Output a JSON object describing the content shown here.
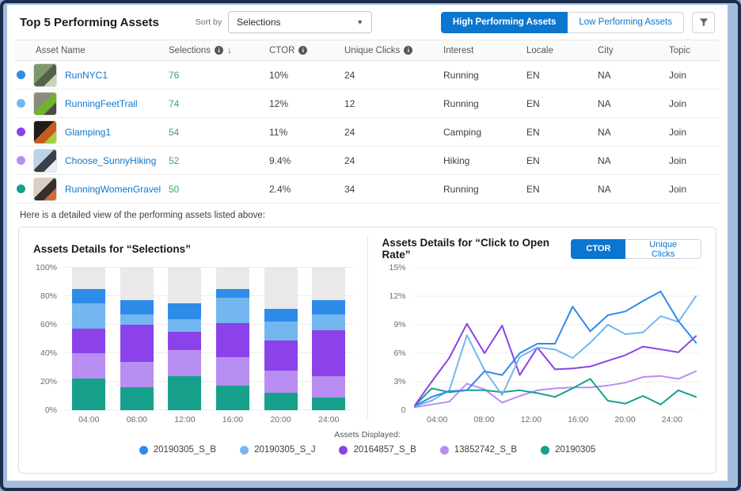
{
  "frame": {
    "border_color": "#1e2c4e",
    "mat_color": "#a4bddd"
  },
  "topbar": {
    "title": "Top 5 Performing Assets",
    "sort_by_label": "Sort by",
    "sort_dropdown_value": "Selections",
    "high_button": "High Performing Assets",
    "low_button": "Low Performing Assets"
  },
  "table": {
    "columns": [
      {
        "label": "Asset Name"
      },
      {
        "label": "Selections",
        "info": true,
        "sorted": true
      },
      {
        "label": "CTOR",
        "info": true
      },
      {
        "label": "Unique Clicks",
        "info": true
      },
      {
        "label": "Interest"
      },
      {
        "label": "Locale"
      },
      {
        "label": "City"
      },
      {
        "label": "Topic"
      }
    ],
    "rows": [
      {
        "dot_color": "#2e8be8",
        "thumb_colors": [
          "#7d9a6b",
          "#55604d",
          "#c8d4b0"
        ],
        "name": "RunNYC1",
        "selections": "76",
        "ctor": "10%",
        "unique_clicks": "24",
        "interest": "Running",
        "locale": "EN",
        "city": "NA",
        "topic": "Join"
      },
      {
        "dot_color": "#74b6f0",
        "thumb_colors": [
          "#8d8a7e",
          "#6db32b",
          "#4a4a44"
        ],
        "name": "RunningFeetTrail",
        "selections": "74",
        "ctor": "12%",
        "unique_clicks": "12",
        "interest": "Running",
        "locale": "EN",
        "city": "NA",
        "topic": "Join"
      },
      {
        "dot_color": "#8b42e8",
        "thumb_colors": [
          "#201a14",
          "#c65a1f",
          "#a6ce39"
        ],
        "name": "Glamping1",
        "selections": "54",
        "ctor": "11%",
        "unique_clicks": "24",
        "interest": "Camping",
        "locale": "EN",
        "city": "NA",
        "topic": "Join"
      },
      {
        "dot_color": "#b88ef2",
        "thumb_colors": [
          "#b9d2e8",
          "#39404a",
          "#e8eef4"
        ],
        "name": "Choose_SunnyHiking",
        "selections": "52",
        "ctor": "9.4%",
        "unique_clicks": "24",
        "interest": "Hiking",
        "locale": "EN",
        "city": "NA",
        "topic": "Join"
      },
      {
        "dot_color": "#17a08c",
        "thumb_colors": [
          "#d9cfc4",
          "#35302d",
          "#cc6f3a"
        ],
        "name": "RunningWomenGravel",
        "selections": "50",
        "ctor": "2.4%",
        "unique_clicks": "34",
        "interest": "Running",
        "locale": "EN",
        "city": "NA",
        "topic": "Join"
      }
    ]
  },
  "note_text": "Here is a detailed view of the performing assets listed above:",
  "charts": {
    "left_title": "Assets Details for “Selections”",
    "right_title": "Assets Details for “Click to Open Rate”",
    "ctor_button": "CTOR",
    "unique_clicks_button": "Unique Clicks",
    "legend_label": "Assets Displayed:"
  },
  "chart_data": [
    {
      "type": "bar",
      "stacked": true,
      "normalized": "percent",
      "title": "Assets Details for “Selections”",
      "categories": [
        "04:00",
        "08:00",
        "12:00",
        "16:00",
        "20:00",
        "24:00"
      ],
      "series": [
        {
          "name": "20190305",
          "color": "#17a08c",
          "values": [
            22,
            16,
            24,
            17,
            12,
            9
          ]
        },
        {
          "name": "13852742_S_B",
          "color": "#b88ef2",
          "values": [
            18,
            18,
            18,
            20,
            16,
            15
          ]
        },
        {
          "name": "20164857_S_B",
          "color": "#8b42e8",
          "values": [
            17,
            26,
            13,
            24,
            21,
            32
          ]
        },
        {
          "name": "20190305_S_J",
          "color": "#74b6f0",
          "values": [
            18,
            7,
            9,
            18,
            13,
            11
          ]
        },
        {
          "name": "20190305_S_B",
          "color": "#2e8be8",
          "values": [
            10,
            10,
            11,
            6,
            9,
            10
          ]
        }
      ],
      "filler_color": "#e9e9e9",
      "ylim": [
        0,
        100
      ],
      "yticks": [
        {
          "v": 0,
          "label": "0%"
        },
        {
          "v": 20,
          "label": "20%"
        },
        {
          "v": 40,
          "label": "40%"
        },
        {
          "v": 60,
          "label": "60%"
        },
        {
          "v": 80,
          "label": "80%"
        },
        {
          "v": 100,
          "label": "100%"
        }
      ],
      "grid": true,
      "legend_position": "bottom-shared"
    },
    {
      "type": "line",
      "title": "Assets Details for “Click to Open Rate”",
      "x": [
        2,
        3.5,
        5,
        6.5,
        8,
        9.5,
        11,
        12.5,
        14,
        15.5,
        17,
        18.5,
        20,
        21.5,
        23,
        24.5,
        26
      ],
      "xdomain": [
        2,
        26.5
      ],
      "ylim": [
        0,
        15
      ],
      "yticks": [
        {
          "v": 0,
          "label": "0"
        },
        {
          "v": 3,
          "label": "3%"
        },
        {
          "v": 6,
          "label": "6%"
        },
        {
          "v": 9,
          "label": "9%"
        },
        {
          "v": 12,
          "label": "12%"
        },
        {
          "v": 15,
          "label": "15%"
        }
      ],
      "xticks": [
        {
          "v": 4,
          "label": "04:00"
        },
        {
          "v": 8,
          "label": "08:00"
        },
        {
          "v": 12,
          "label": "12:00"
        },
        {
          "v": 16,
          "label": "16:00"
        },
        {
          "v": 20,
          "label": "20:00"
        },
        {
          "v": 24,
          "label": "24:00"
        }
      ],
      "series": [
        {
          "name": "13852742_S_B",
          "color": "#b88ef2",
          "values": [
            0.3,
            0.6,
            0.9,
            2.8,
            2.2,
            0.8,
            1.5,
            2.1,
            2.3,
            2.4,
            2.4,
            2.6,
            2.9,
            3.5,
            3.6,
            3.3,
            4.1
          ]
        },
        {
          "name": "20190305",
          "color": "#17a08c",
          "values": [
            0.4,
            2.3,
            1.9,
            2.1,
            2.1,
            1.9,
            2.1,
            1.8,
            1.4,
            2.3,
            3.3,
            1.0,
            0.7,
            1.5,
            0.6,
            2.1,
            1.4
          ]
        },
        {
          "name": "20164857_S_B",
          "color": "#8b42e8",
          "values": [
            0.4,
            3.0,
            5.5,
            9.1,
            6.0,
            8.9,
            3.7,
            6.6,
            4.3,
            4.4,
            4.6,
            5.2,
            5.8,
            6.7,
            6.4,
            6.1,
            7.8
          ]
        },
        {
          "name": "20190305_S_J",
          "color": "#74b6f0",
          "values": [
            0.4,
            1.0,
            2.1,
            7.9,
            4.2,
            1.6,
            5.6,
            6.6,
            6.4,
            5.5,
            7.1,
            9.0,
            8.0,
            8.2,
            9.9,
            9.3,
            12.0
          ]
        },
        {
          "name": "20190305_S_B",
          "color": "#2e8be8",
          "values": [
            0.4,
            1.4,
            2.0,
            2.1,
            4.1,
            3.7,
            6.0,
            7.0,
            7.0,
            10.9,
            8.3,
            10.0,
            10.4,
            11.5,
            12.5,
            9.4,
            7.1
          ]
        }
      ],
      "grid": true,
      "legend_position": "bottom-shared"
    }
  ],
  "legend": [
    {
      "label": "20190305_S_B",
      "color": "#2e8be8"
    },
    {
      "label": "20190305_S_J",
      "color": "#74b6f0"
    },
    {
      "label": "20164857_S_B",
      "color": "#8b42e8"
    },
    {
      "label": "13852742_S_B",
      "color": "#b88ef2"
    },
    {
      "label": "20190305",
      "color": "#17a08c"
    }
  ]
}
